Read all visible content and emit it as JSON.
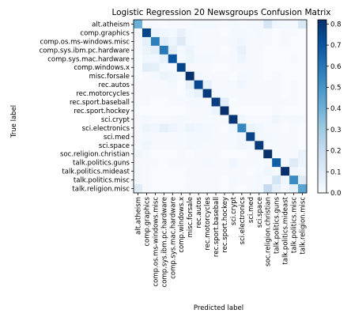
{
  "chart_data": {
    "type": "heatmap",
    "title": "Logistic Regression 20 Newsgroups Confusion Matrix",
    "xlabel": "Predicted label",
    "ylabel": "True label",
    "labels": [
      "alt.atheism",
      "comp.graphics",
      "comp.os.ms-windows.misc",
      "comp.sys.ibm.pc.hardware",
      "comp.sys.mac.hardware",
      "comp.windows.x",
      "misc.forsale",
      "rec.autos",
      "rec.motorcycles",
      "rec.sport.baseball",
      "rec.sport.hockey",
      "sci.crypt",
      "sci.electronics",
      "sci.med",
      "sci.space",
      "soc.religion.christian",
      "talk.politics.guns",
      "talk.politics.mideast",
      "talk.politics.misc",
      "talk.religion.misc"
    ],
    "matrix": [
      [
        0.4,
        0.01,
        0.01,
        0.0,
        0.01,
        0.01,
        0.01,
        0.02,
        0.02,
        0.02,
        0.01,
        0.02,
        0.01,
        0.02,
        0.02,
        0.13,
        0.03,
        0.02,
        0.02,
        0.12
      ],
      [
        0.01,
        0.74,
        0.04,
        0.03,
        0.02,
        0.06,
        0.02,
        0.01,
        0.01,
        0.01,
        0.0,
        0.02,
        0.02,
        0.01,
        0.02,
        0.01,
        0.0,
        0.01,
        0.01,
        0.0
      ],
      [
        0.01,
        0.07,
        0.56,
        0.08,
        0.04,
        0.1,
        0.02,
        0.01,
        0.01,
        0.01,
        0.01,
        0.02,
        0.03,
        0.01,
        0.01,
        0.01,
        0.0,
        0.01,
        0.0,
        0.0
      ],
      [
        0.01,
        0.05,
        0.08,
        0.58,
        0.08,
        0.02,
        0.05,
        0.01,
        0.01,
        0.01,
        0.0,
        0.01,
        0.06,
        0.01,
        0.01,
        0.0,
        0.0,
        0.0,
        0.0,
        0.0
      ],
      [
        0.0,
        0.03,
        0.03,
        0.07,
        0.69,
        0.01,
        0.04,
        0.02,
        0.02,
        0.01,
        0.01,
        0.01,
        0.04,
        0.01,
        0.01,
        0.0,
        0.0,
        0.0,
        0.01,
        0.0
      ],
      [
        0.0,
        0.09,
        0.07,
        0.02,
        0.01,
        0.74,
        0.01,
        0.01,
        0.01,
        0.0,
        0.0,
        0.01,
        0.01,
        0.01,
        0.01,
        0.0,
        0.0,
        0.0,
        0.0,
        0.0
      ],
      [
        0.0,
        0.01,
        0.02,
        0.05,
        0.03,
        0.01,
        0.81,
        0.03,
        0.01,
        0.01,
        0.01,
        0.0,
        0.02,
        0.01,
        0.01,
        0.0,
        0.01,
        0.0,
        0.0,
        0.0
      ],
      [
        0.01,
        0.01,
        0.01,
        0.01,
        0.02,
        0.0,
        0.06,
        0.73,
        0.06,
        0.01,
        0.01,
        0.01,
        0.03,
        0.01,
        0.01,
        0.01,
        0.01,
        0.0,
        0.01,
        0.0
      ],
      [
        0.01,
        0.01,
        0.01,
        0.01,
        0.01,
        0.0,
        0.03,
        0.06,
        0.77,
        0.02,
        0.01,
        0.01,
        0.01,
        0.01,
        0.01,
        0.01,
        0.01,
        0.0,
        0.01,
        0.0
      ],
      [
        0.01,
        0.01,
        0.0,
        0.0,
        0.01,
        0.01,
        0.02,
        0.02,
        0.01,
        0.76,
        0.08,
        0.0,
        0.01,
        0.01,
        0.01,
        0.01,
        0.01,
        0.01,
        0.01,
        0.0
      ],
      [
        0.0,
        0.0,
        0.0,
        0.0,
        0.0,
        0.0,
        0.01,
        0.01,
        0.01,
        0.04,
        0.88,
        0.0,
        0.0,
        0.0,
        0.0,
        0.0,
        0.01,
        0.0,
        0.0,
        0.0
      ],
      [
        0.01,
        0.02,
        0.01,
        0.01,
        0.01,
        0.02,
        0.01,
        0.01,
        0.01,
        0.01,
        0.01,
        0.78,
        0.03,
        0.01,
        0.01,
        0.01,
        0.03,
        0.01,
        0.02,
        0.01
      ],
      [
        0.01,
        0.04,
        0.03,
        0.07,
        0.04,
        0.02,
        0.04,
        0.03,
        0.02,
        0.01,
        0.0,
        0.03,
        0.54,
        0.05,
        0.03,
        0.01,
        0.01,
        0.0,
        0.01,
        0.0
      ],
      [
        0.01,
        0.02,
        0.01,
        0.01,
        0.01,
        0.01,
        0.02,
        0.02,
        0.02,
        0.01,
        0.01,
        0.01,
        0.03,
        0.74,
        0.02,
        0.02,
        0.01,
        0.01,
        0.01,
        0.0
      ],
      [
        0.01,
        0.03,
        0.01,
        0.01,
        0.01,
        0.01,
        0.02,
        0.02,
        0.01,
        0.01,
        0.01,
        0.01,
        0.03,
        0.02,
        0.77,
        0.01,
        0.01,
        0.01,
        0.01,
        0.0
      ],
      [
        0.03,
        0.01,
        0.0,
        0.0,
        0.0,
        0.01,
        0.0,
        0.01,
        0.01,
        0.01,
        0.0,
        0.0,
        0.0,
        0.01,
        0.01,
        0.82,
        0.01,
        0.01,
        0.01,
        0.05
      ],
      [
        0.01,
        0.01,
        0.01,
        0.0,
        0.01,
        0.01,
        0.01,
        0.01,
        0.02,
        0.01,
        0.01,
        0.03,
        0.01,
        0.01,
        0.01,
        0.02,
        0.66,
        0.02,
        0.1,
        0.04
      ],
      [
        0.02,
        0.01,
        0.0,
        0.0,
        0.0,
        0.0,
        0.01,
        0.01,
        0.01,
        0.01,
        0.01,
        0.01,
        0.01,
        0.0,
        0.01,
        0.03,
        0.01,
        0.8,
        0.03,
        0.02
      ],
      [
        0.02,
        0.01,
        0.0,
        0.0,
        0.0,
        0.0,
        0.01,
        0.01,
        0.01,
        0.01,
        0.0,
        0.02,
        0.01,
        0.01,
        0.02,
        0.01,
        0.14,
        0.03,
        0.52,
        0.1
      ],
      [
        0.1,
        0.01,
        0.0,
        0.0,
        0.0,
        0.0,
        0.01,
        0.01,
        0.01,
        0.01,
        0.0,
        0.01,
        0.0,
        0.01,
        0.02,
        0.2,
        0.07,
        0.02,
        0.07,
        0.44
      ]
    ],
    "colorbar": {
      "min": 0.0,
      "max": 0.8,
      "ticks": [
        "0.0",
        "0.1",
        "0.2",
        "0.3",
        "0.4",
        "0.5",
        "0.6",
        "0.7",
        "0.8"
      ],
      "colormap": "Blues"
    },
    "legend": "none",
    "grid": false
  }
}
